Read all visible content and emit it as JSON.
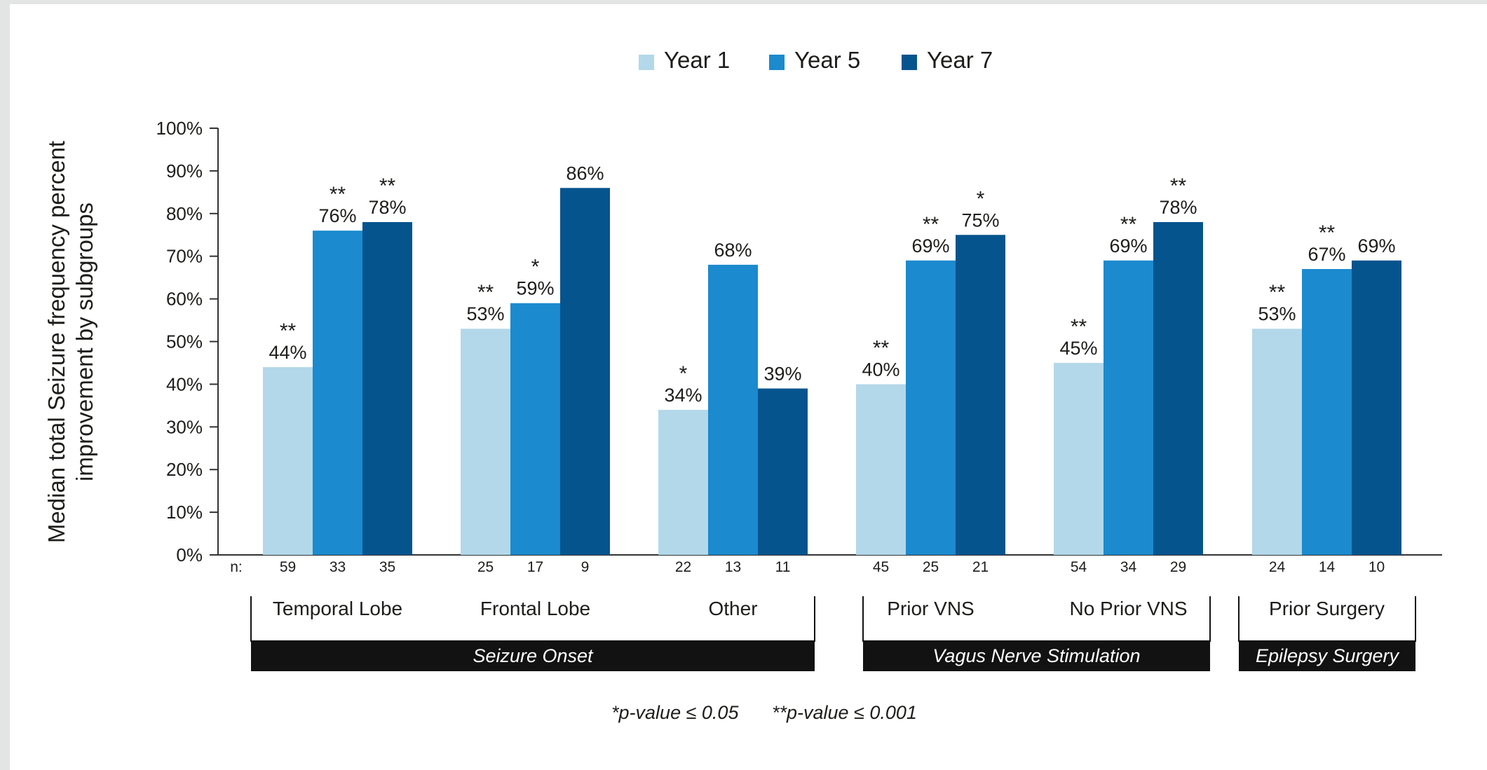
{
  "colors": {
    "year1": "#b3d8ea",
    "year5": "#1b8ace",
    "year7": "#06548e",
    "axis": "#333333",
    "group_bar": "#121212",
    "page_bg": "#e3e5e4"
  },
  "chart_data": {
    "type": "bar",
    "ylabel": [
      "Median total Seizure frequency percent",
      "improvement by subgroups"
    ],
    "ylim": [
      0,
      100
    ],
    "yticks": [
      0,
      10,
      20,
      30,
      40,
      50,
      60,
      70,
      80,
      90,
      100
    ],
    "ytick_suffix": "%",
    "grid": false,
    "legend_position": "top-center",
    "series": [
      {
        "name": "Year 1",
        "color_key": "year1"
      },
      {
        "name": "Year 5",
        "color_key": "year5"
      },
      {
        "name": "Year 7",
        "color_key": "year7"
      }
    ],
    "n_prefix": "n:",
    "categories": [
      {
        "label": "Temporal Lobe",
        "values": [
          44,
          76,
          78
        ],
        "labels": [
          "44%",
          "76%",
          "78%"
        ],
        "significance": [
          "**",
          "**",
          "**"
        ],
        "n": [
          "59",
          "33",
          "35"
        ]
      },
      {
        "label": "Frontal Lobe",
        "values": [
          53,
          59,
          86
        ],
        "labels": [
          "53%",
          "59%",
          "86%"
        ],
        "significance": [
          "**",
          "*",
          ""
        ],
        "n": [
          "25",
          "17",
          "9"
        ]
      },
      {
        "label": "Other",
        "values": [
          34,
          68,
          39
        ],
        "labels": [
          "34%",
          "68%",
          "39%"
        ],
        "significance": [
          "*",
          "",
          ""
        ],
        "n": [
          "22",
          "13",
          "11"
        ]
      },
      {
        "label": "Prior VNS",
        "values": [
          40,
          69,
          75
        ],
        "labels": [
          "40%",
          "69%",
          "75%"
        ],
        "significance": [
          "**",
          "**",
          "*"
        ],
        "n": [
          "45",
          "25",
          "21"
        ]
      },
      {
        "label": "No Prior VNS",
        "values": [
          45,
          69,
          78
        ],
        "labels": [
          "45%",
          "69%",
          "78%"
        ],
        "significance": [
          "**",
          "**",
          "**"
        ],
        "n": [
          "54",
          "34",
          "29"
        ]
      },
      {
        "label": "Prior Surgery",
        "values": [
          53,
          67,
          69
        ],
        "labels": [
          "53%",
          "67%",
          "69%"
        ],
        "significance": [
          "**",
          "**",
          ""
        ],
        "n": [
          "24",
          "14",
          "10"
        ]
      }
    ],
    "groups": [
      {
        "label": "Seizure Onset",
        "categories": [
          0,
          1,
          2
        ]
      },
      {
        "label": "Vagus Nerve Stimulation",
        "categories": [
          3,
          4
        ]
      },
      {
        "label": "Epilepsy Surgery",
        "categories": [
          5
        ]
      }
    ],
    "footnote": {
      "single": "*p-value ≤ 0.05",
      "double": "**p-value ≤ 0.001"
    }
  }
}
